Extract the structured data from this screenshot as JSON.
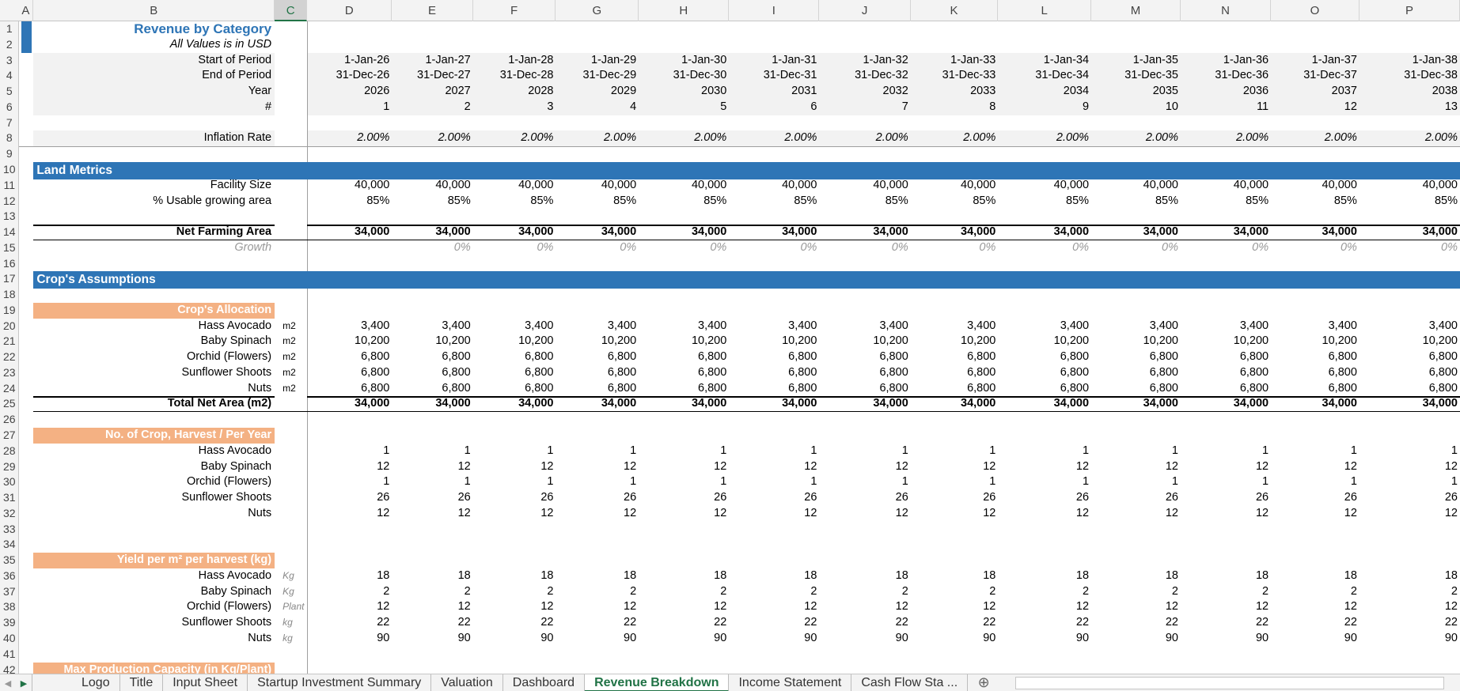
{
  "column_headers": [
    "A",
    "B",
    "C",
    "D",
    "E",
    "F",
    "G",
    "H",
    "I",
    "J",
    "K",
    "L",
    "M",
    "N",
    "O",
    "P"
  ],
  "row_headers": [
    1,
    2,
    3,
    4,
    5,
    6,
    7,
    8,
    9,
    10,
    11,
    12,
    13,
    14,
    15,
    16,
    17,
    18,
    19,
    20,
    21,
    22,
    23,
    24,
    25,
    26,
    27,
    28,
    29,
    30,
    31,
    32,
    33,
    34,
    35,
    36,
    37,
    38,
    39,
    40,
    41,
    42
  ],
  "header": {
    "title": "Revenue by Category",
    "subtitle": "All Values is in USD"
  },
  "rows": [
    {
      "label": "Start of Period",
      "values": [
        "1-Jan-26",
        "1-Jan-27",
        "1-Jan-28",
        "1-Jan-29",
        "1-Jan-30",
        "1-Jan-31",
        "1-Jan-32",
        "1-Jan-33",
        "1-Jan-34",
        "1-Jan-35",
        "1-Jan-36",
        "1-Jan-37",
        "1-Jan-38"
      ]
    },
    {
      "label": "End of Period",
      "values": [
        "31-Dec-26",
        "31-Dec-27",
        "31-Dec-28",
        "31-Dec-29",
        "31-Dec-30",
        "31-Dec-31",
        "31-Dec-32",
        "31-Dec-33",
        "31-Dec-34",
        "31-Dec-35",
        "31-Dec-36",
        "31-Dec-37",
        "31-Dec-38"
      ]
    },
    {
      "label": "Year",
      "values": [
        2026,
        2027,
        2028,
        2029,
        2030,
        2031,
        2032,
        2033,
        2034,
        2035,
        2036,
        2037,
        2038
      ]
    },
    {
      "label": "#",
      "values": [
        1,
        2,
        3,
        4,
        5,
        6,
        7,
        8,
        9,
        10,
        11,
        12,
        13
      ]
    },
    {
      "label": "Inflation Rate",
      "values": [
        "2.00%",
        "2.00%",
        "2.00%",
        "2.00%",
        "2.00%",
        "2.00%",
        "2.00%",
        "2.00%",
        "2.00%",
        "2.00%",
        "2.00%",
        "2.00%",
        "2.00%"
      ]
    },
    {
      "section": "Land Metrics"
    },
    {
      "label": "Facility Size",
      "values": [
        "40,000",
        "40,000",
        "40,000",
        "40,000",
        "40,000",
        "40,000",
        "40,000",
        "40,000",
        "40,000",
        "40,000",
        "40,000",
        "40,000",
        "40,000"
      ]
    },
    {
      "label": "% Usable growing area",
      "values": [
        "85%",
        "85%",
        "85%",
        "85%",
        "85%",
        "85%",
        "85%",
        "85%",
        "85%",
        "85%",
        "85%",
        "85%",
        "85%"
      ]
    },
    {
      "label": "Net Farming Area",
      "values": [
        "34,000",
        "34,000",
        "34,000",
        "34,000",
        "34,000",
        "34,000",
        "34,000",
        "34,000",
        "34,000",
        "34,000",
        "34,000",
        "34,000",
        "34,000"
      ]
    },
    {
      "label": "Growth",
      "values": [
        null,
        "0%",
        "0%",
        "0%",
        "0%",
        "0%",
        "0%",
        "0%",
        "0%",
        "0%",
        "0%",
        "0%",
        "0%"
      ]
    },
    {
      "section": "Crop's Assumptions"
    },
    {
      "group": "Crop's Allocation"
    },
    {
      "label": "Hass Avocado",
      "unit": "m2",
      "values": [
        "3,400",
        "3,400",
        "3,400",
        "3,400",
        "3,400",
        "3,400",
        "3,400",
        "3,400",
        "3,400",
        "3,400",
        "3,400",
        "3,400",
        "3,400"
      ]
    },
    {
      "label": "Baby Spinach",
      "unit": "m2",
      "values": [
        "10,200",
        "10,200",
        "10,200",
        "10,200",
        "10,200",
        "10,200",
        "10,200",
        "10,200",
        "10,200",
        "10,200",
        "10,200",
        "10,200",
        "10,200"
      ]
    },
    {
      "label": "Orchid (Flowers)",
      "unit": "m2",
      "values": [
        "6,800",
        "6,800",
        "6,800",
        "6,800",
        "6,800",
        "6,800",
        "6,800",
        "6,800",
        "6,800",
        "6,800",
        "6,800",
        "6,800",
        "6,800"
      ]
    },
    {
      "label": "Sunflower Shoots",
      "unit": "m2",
      "values": [
        "6,800",
        "6,800",
        "6,800",
        "6,800",
        "6,800",
        "6,800",
        "6,800",
        "6,800",
        "6,800",
        "6,800",
        "6,800",
        "6,800",
        "6,800"
      ]
    },
    {
      "label": "Nuts",
      "unit": "m2",
      "values": [
        "6,800",
        "6,800",
        "6,800",
        "6,800",
        "6,800",
        "6,800",
        "6,800",
        "6,800",
        "6,800",
        "6,800",
        "6,800",
        "6,800",
        "6,800"
      ]
    },
    {
      "label": "Total Net Area (m2)",
      "values": [
        "34,000",
        "34,000",
        "34,000",
        "34,000",
        "34,000",
        "34,000",
        "34,000",
        "34,000",
        "34,000",
        "34,000",
        "34,000",
        "34,000",
        "34,000"
      ]
    },
    {
      "group": "No. of Crop, Harvest / Per Year"
    },
    {
      "label": "Hass Avocado",
      "values": [
        1,
        1,
        1,
        1,
        1,
        1,
        1,
        1,
        1,
        1,
        1,
        1,
        1
      ]
    },
    {
      "label": "Baby Spinach",
      "values": [
        12,
        12,
        12,
        12,
        12,
        12,
        12,
        12,
        12,
        12,
        12,
        12,
        12
      ]
    },
    {
      "label": "Orchid (Flowers)",
      "values": [
        1,
        1,
        1,
        1,
        1,
        1,
        1,
        1,
        1,
        1,
        1,
        1,
        1
      ]
    },
    {
      "label": "Sunflower Shoots",
      "values": [
        26,
        26,
        26,
        26,
        26,
        26,
        26,
        26,
        26,
        26,
        26,
        26,
        26
      ]
    },
    {
      "label": "Nuts",
      "values": [
        12,
        12,
        12,
        12,
        12,
        12,
        12,
        12,
        12,
        12,
        12,
        12,
        12
      ]
    },
    {
      "group": "Yield per m² per harvest (kg)"
    },
    {
      "label": "Hass Avocado",
      "unit": "Kg",
      "values": [
        18,
        18,
        18,
        18,
        18,
        18,
        18,
        18,
        18,
        18,
        18,
        18,
        18
      ]
    },
    {
      "label": "Baby Spinach",
      "unit": "Kg",
      "values": [
        2,
        2,
        2,
        2,
        2,
        2,
        2,
        2,
        2,
        2,
        2,
        2,
        2
      ]
    },
    {
      "label": "Orchid (Flowers)",
      "unit": "Plant",
      "values": [
        12,
        12,
        12,
        12,
        12,
        12,
        12,
        12,
        12,
        12,
        12,
        12,
        12
      ]
    },
    {
      "label": "Sunflower Shoots",
      "unit": "kg",
      "values": [
        22,
        22,
        22,
        22,
        22,
        22,
        22,
        22,
        22,
        22,
        22,
        22,
        22
      ]
    },
    {
      "label": "Nuts",
      "unit": "kg",
      "values": [
        90,
        90,
        90,
        90,
        90,
        90,
        90,
        90,
        90,
        90,
        90,
        90,
        90
      ]
    },
    {
      "group": "Max Production Capacity (in Kg/Plant)"
    }
  ],
  "tabs": [
    "Logo",
    "Title",
    "Input Sheet",
    "Startup Investment Summary",
    "Valuation",
    "Dashboard",
    "Revenue Breakdown",
    "Income Statement",
    "Cash Flow Sta ..."
  ]
}
